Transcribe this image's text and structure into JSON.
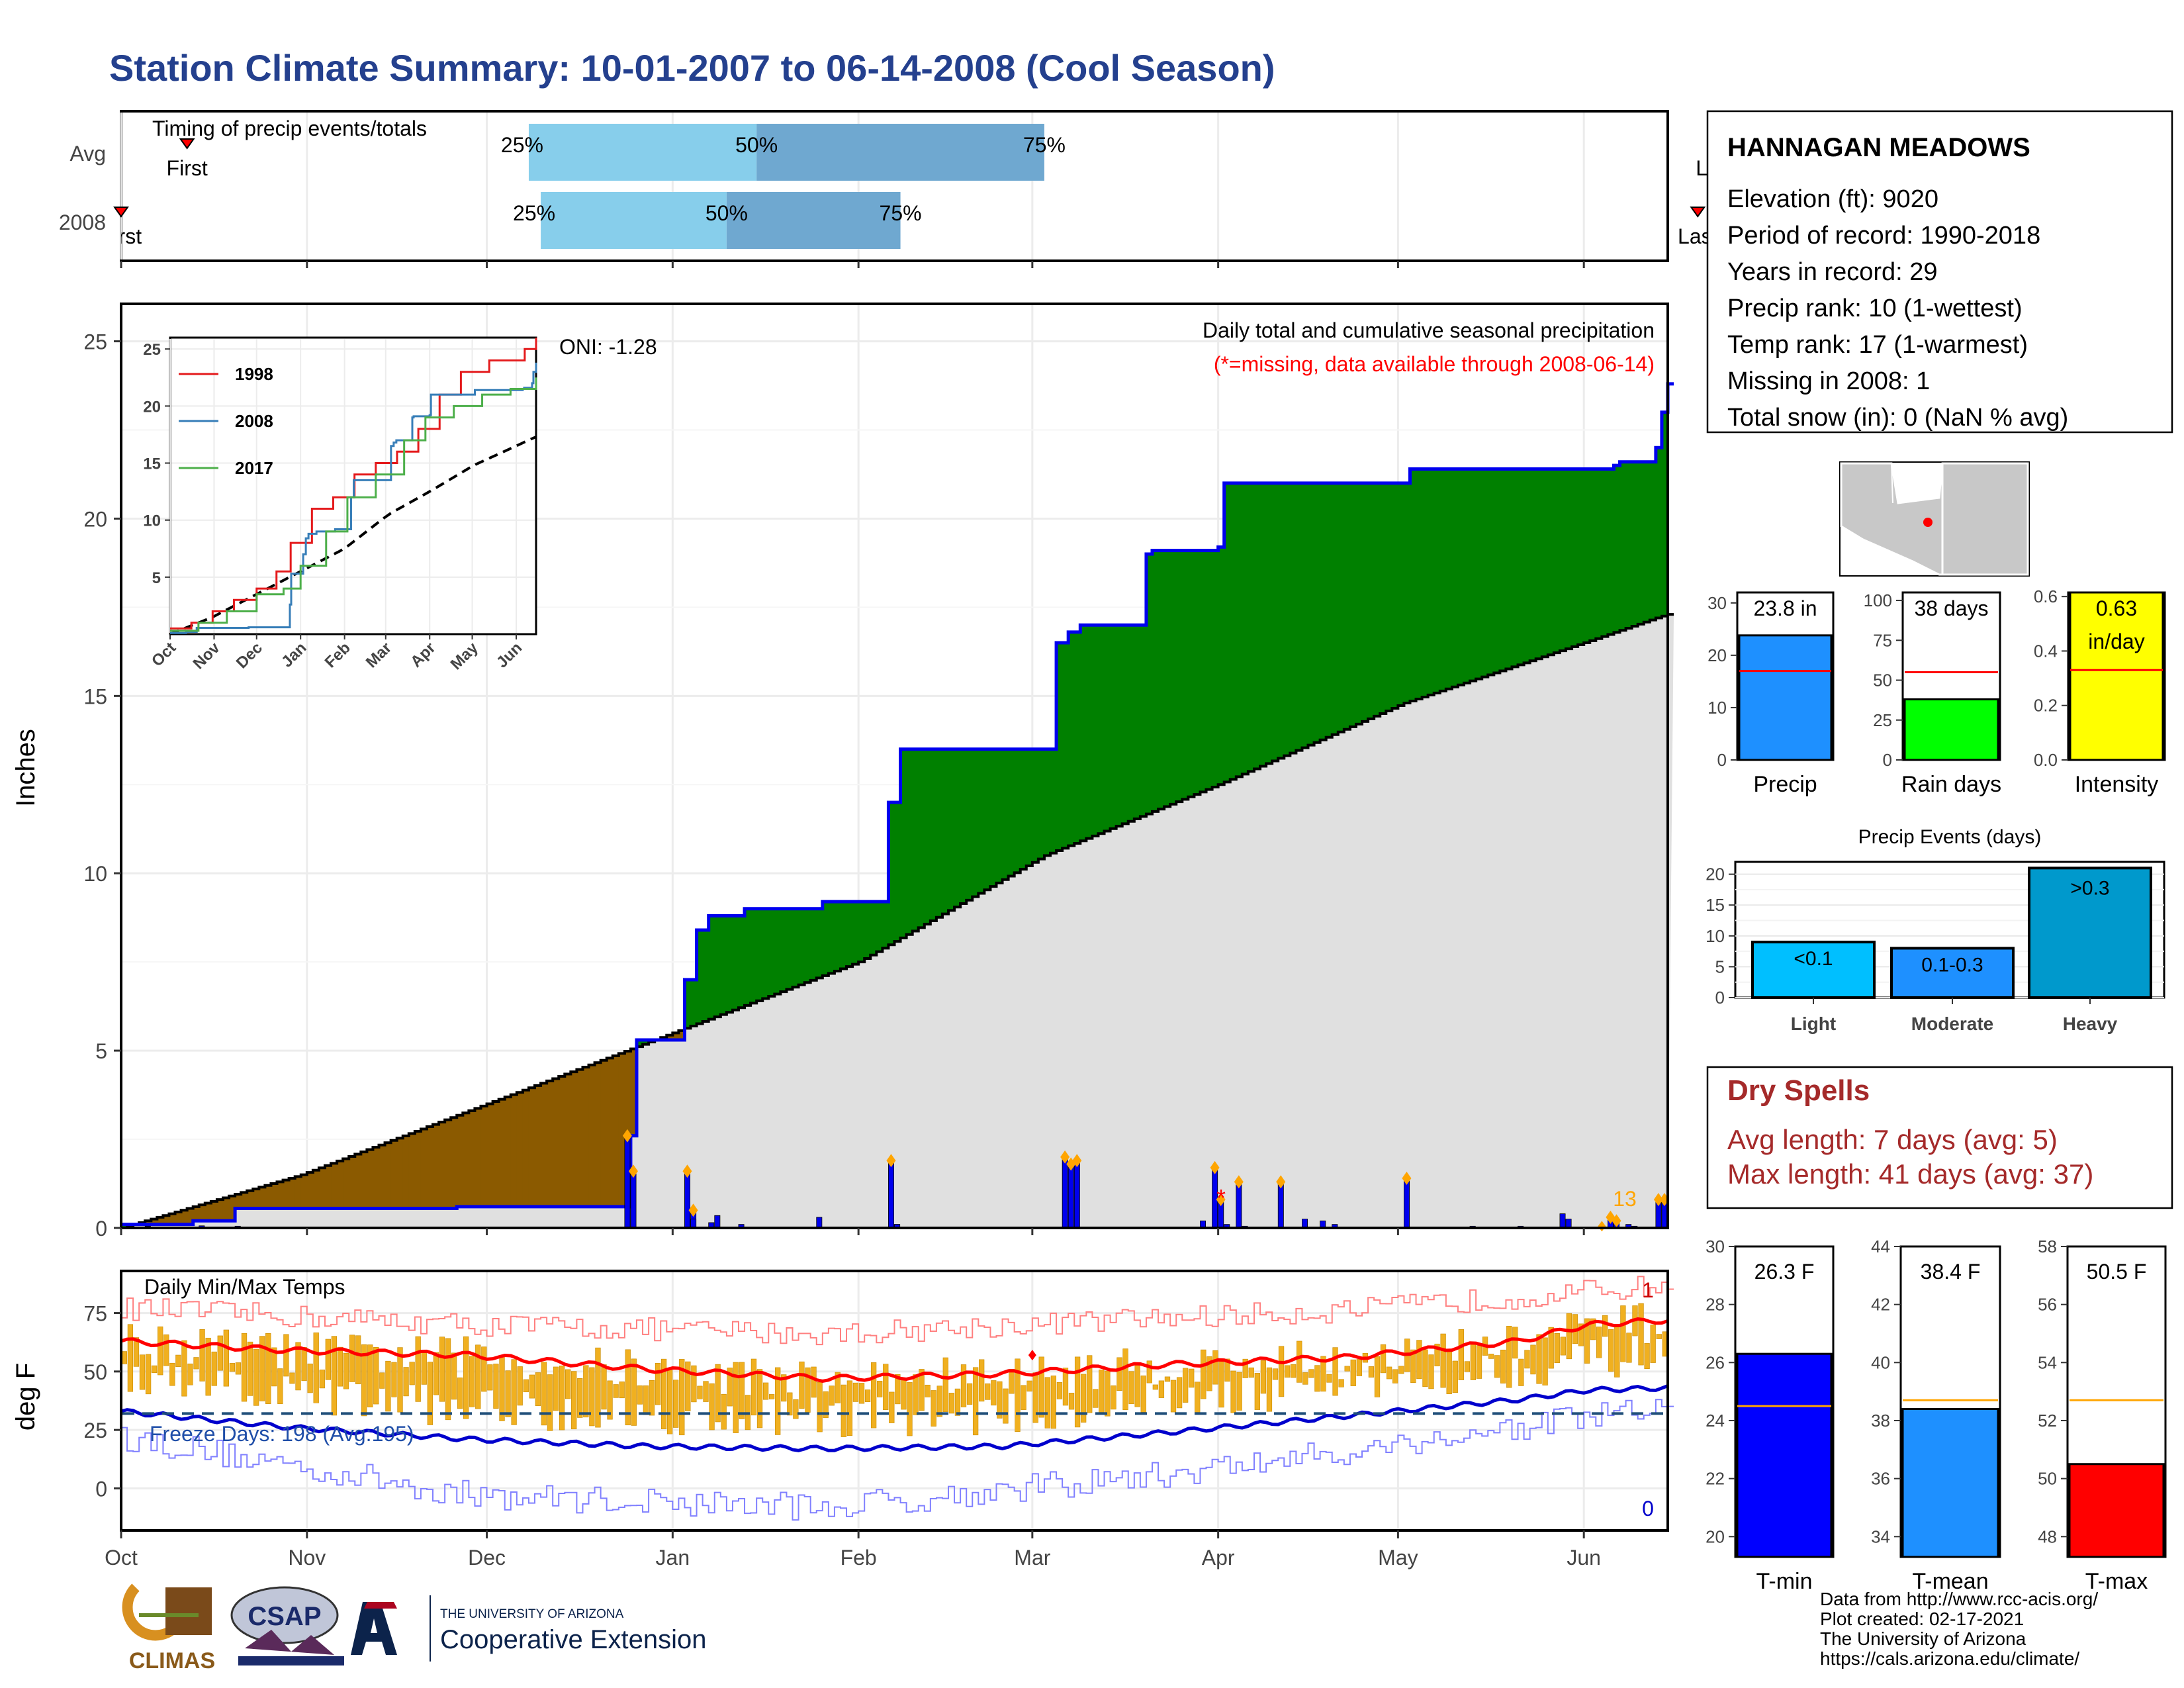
{
  "title": "Station Climate Summary: 10-01-2007 to 06-14-2008 (Cool Season)",
  "colors": {
    "title": "#24408e",
    "precip_blue": "#1e90ff",
    "rain_green": "#00ff00",
    "intensity_yellow": "#ffff00",
    "cum_2008": "#008000",
    "cum_deficit": "#8b5a00",
    "normal_fill": "#e0e0e0",
    "tmin_blue": "#0000ff",
    "tmax_red": "#ff0000",
    "range_bar": "#f0b020",
    "dry_spell": "#a52a2a",
    "timing_light": "#87ceeb",
    "timing_dark": "#6fa8d0",
    "event_light": "#00bfff",
    "event_mod": "#1e90ff",
    "event_heavy": "#0099cc"
  },
  "timing": {
    "label": "Timing of precip events/totals",
    "rows": [
      {
        "name": "Avg",
        "first": "First",
        "last": "Last",
        "q25": "25%",
        "q50": "50%",
        "q75": "75%",
        "first_day": 11,
        "last_day": 266,
        "p25": 68,
        "p50": 106,
        "p75": 154
      },
      {
        "name": "2008",
        "first": "First",
        "last": "Last",
        "q25": "25%",
        "q50": "50%",
        "q75": "75%",
        "first_day": 0,
        "last_day": 263,
        "p25": 70,
        "p50": 101,
        "p75": 130
      }
    ]
  },
  "precip_chart": {
    "ylabel": "Inches",
    "yticks": [
      "0",
      "5",
      "10",
      "15",
      "20",
      "25"
    ],
    "months": [
      "Oct",
      "Nov",
      "Dec",
      "Jan",
      "Feb",
      "Mar",
      "Apr",
      "May",
      "Jun"
    ],
    "annotation_title": "Daily total and cumulative seasonal precipitation",
    "annotation_missing": "(*=missing, data available through 2008-06-14)",
    "oni": "ONI: -1.28",
    "missing_marker": "*",
    "count_label": "13",
    "season_total": 23.8,
    "normal_total": 17.9
  },
  "chart_data": [
    {
      "type": "area",
      "title": "Daily total and cumulative seasonal precipitation",
      "ylabel": "Inches",
      "ylim": [
        0,
        26
      ],
      "series": [
        {
          "name": "2008",
          "points": [
            [
              0,
              0.1
            ],
            [
              12,
              0.2
            ],
            [
              59,
              0.6
            ],
            [
              90,
              2.6
            ],
            [
              92,
              4.9
            ],
            [
              100,
              7
            ],
            [
              120,
              9
            ],
            [
              130,
              9.2
            ],
            [
              143,
              12
            ],
            [
              165,
              13.5
            ],
            [
              172,
              13.5
            ],
            [
              183,
              16.5
            ],
            [
              200,
              19
            ],
            [
              215,
              20.8
            ],
            [
              230,
              21
            ],
            [
              257,
              23
            ],
            [
              270,
              23.7
            ],
            [
              257,
              23.8
            ]
          ]
        },
        {
          "name": "Normal",
          "points": [
            [
              0,
              0
            ],
            [
              30,
              1.5
            ],
            [
              61,
              3.5
            ],
            [
              92,
              5.5
            ],
            [
              123,
              7.5
            ],
            [
              154,
              10.5
            ],
            [
              183,
              12.5
            ],
            [
              214,
              14.8
            ],
            [
              244,
              16.5
            ],
            [
              256,
              17.2
            ],
            [
              270,
              17.9
            ]
          ]
        }
      ],
      "daily_bars": [
        [
          90,
          2.6
        ],
        [
          91,
          1.6
        ],
        [
          100,
          1.6
        ],
        [
          101,
          0.5
        ],
        [
          136,
          1.9
        ],
        [
          167,
          2.0
        ],
        [
          168,
          1.8
        ],
        [
          170,
          1.9
        ],
        [
          194,
          1.7
        ],
        [
          195,
          0.8
        ],
        [
          198,
          1.3
        ],
        [
          206,
          1.3
        ],
        [
          228,
          1.4
        ],
        [
          264,
          0.3
        ],
        [
          265,
          0.2
        ],
        [
          273,
          0.8
        ],
        [
          274,
          0.8
        ]
      ]
    },
    {
      "type": "line",
      "title": "Daily Min/Max Temps",
      "ylabel": "deg F",
      "ylim": [
        -18,
        93
      ],
      "freeze_days": "Freeze Days: 198 (Avg:195)",
      "record_high_count": "1",
      "record_low_count": "0",
      "yticks": [
        "0",
        "25",
        "50",
        "75"
      ],
      "avg_max": [
        [
          0,
          63
        ],
        [
          30,
          59
        ],
        [
          61,
          57
        ],
        [
          92,
          51
        ],
        [
          123,
          47
        ],
        [
          154,
          49
        ],
        [
          183,
          53
        ],
        [
          214,
          56
        ],
        [
          244,
          63
        ],
        [
          256,
          70
        ],
        [
          270,
          72
        ]
      ],
      "avg_min": [
        [
          0,
          33
        ],
        [
          30,
          26
        ],
        [
          61,
          21
        ],
        [
          92,
          18
        ],
        [
          123,
          17
        ],
        [
          154,
          18
        ],
        [
          183,
          24
        ],
        [
          214,
          31
        ],
        [
          244,
          38
        ],
        [
          256,
          42
        ],
        [
          270,
          43
        ]
      ],
      "rec_max": [
        [
          0,
          77
        ],
        [
          61,
          70
        ],
        [
          123,
          66
        ],
        [
          183,
          73
        ],
        [
          214,
          76
        ],
        [
          270,
          87
        ]
      ],
      "rec_min": [
        [
          0,
          22
        ],
        [
          61,
          -3
        ],
        [
          123,
          -8
        ],
        [
          183,
          6
        ],
        [
          214,
          16
        ],
        [
          270,
          35
        ]
      ],
      "freeze_line": 32
    },
    {
      "type": "bar",
      "title": "",
      "categories": [
        "Precip",
        "Rain days",
        "Intensity"
      ],
      "values": [
        23.8,
        38,
        0.63
      ],
      "averages": [
        17,
        55,
        0.33
      ],
      "labels": [
        "23.8 in",
        "38 days",
        "0.63 in/day"
      ]
    },
    {
      "type": "bar",
      "title": "Precip Events (days)",
      "categories": [
        "Light",
        "Moderate",
        "Heavy"
      ],
      "inner_labels": [
        "<0.1",
        "0.1-0.3",
        ">0.3"
      ],
      "values": [
        9,
        8,
        21
      ],
      "ylim": [
        0,
        22
      ]
    },
    {
      "type": "bar",
      "title": "",
      "categories": [
        "T-min",
        "T-mean",
        "T-max"
      ],
      "values": [
        26.3,
        38.4,
        50.5
      ],
      "averages": [
        24.5,
        38.7,
        52.7
      ],
      "labels": [
        "26.3 F",
        "38.4 F",
        "50.5 F"
      ]
    }
  ],
  "station": {
    "name": "HANNAGAN MEADOWS",
    "lines": [
      "Elevation (ft): 9020",
      "Period of record: 1990-2018",
      "Years in record: 29",
      "Precip rank: 10 (1-wettest)",
      "Temp rank: 17 (1-warmest)",
      "Missing in 2008: 1",
      "Total snow (in): 0 (NaN % avg)"
    ]
  },
  "stats": {
    "precip_label": "Precip",
    "rain_label": "Rain days",
    "intensity_label": "Intensity",
    "precip_value": "23.8 in",
    "rain_value": "38 days",
    "intensity_value": "0.63",
    "intensity_unit": "in/day",
    "precip_ticks": [
      "0",
      "10",
      "20",
      "30"
    ],
    "rain_ticks": [
      "0",
      "25",
      "50",
      "75",
      "100"
    ],
    "intensity_ticks": [
      "0.0",
      "0.2",
      "0.4",
      "0.6"
    ]
  },
  "events": {
    "title": "Precip Events (days)",
    "ticks": [
      "0",
      "5",
      "10",
      "15",
      "20"
    ],
    "cats": [
      "Light",
      "Moderate",
      "Heavy"
    ],
    "inner": [
      "<0.1",
      "0.1-0.3",
      ">0.3"
    ]
  },
  "dry": {
    "title": "Dry Spells",
    "avg": "Avg length: 7 days (avg: 5)",
    "max": "Max length: 41 days (avg: 37)"
  },
  "temps": {
    "tmin_label": "T-min",
    "tmean_label": "T-mean",
    "tmax_label": "T-max",
    "tmin_value": "26.3 F",
    "tmean_value": "38.4 F",
    "tmax_value": "50.5 F",
    "tmin_ticks": [
      "20",
      "22",
      "24",
      "26",
      "28",
      "30"
    ],
    "tmean_ticks": [
      "34",
      "36",
      "38",
      "40",
      "42",
      "44"
    ],
    "tmax_ticks": [
      "48",
      "50",
      "52",
      "54",
      "56",
      "58"
    ]
  },
  "inset": {
    "legend": [
      "1998",
      "2008",
      "2017"
    ],
    "yticks": [
      "5",
      "10",
      "15",
      "20",
      "25"
    ],
    "months": [
      "Oct",
      "Nov",
      "Dec",
      "Jan",
      "Feb",
      "Mar",
      "Apr",
      "May",
      "Jun"
    ]
  },
  "footer": {
    "lines": [
      "Data from http://www.rcc-acis.org/",
      "Plot created: 02-17-2021",
      "The University of Arizona",
      "https://cals.arizona.edu/climate/"
    ],
    "climas": "CLIMAS",
    "csap": "CSAP",
    "ua_small": "THE UNIVERSITY OF ARIZONA",
    "ua_big": "Cooperative Extension"
  }
}
